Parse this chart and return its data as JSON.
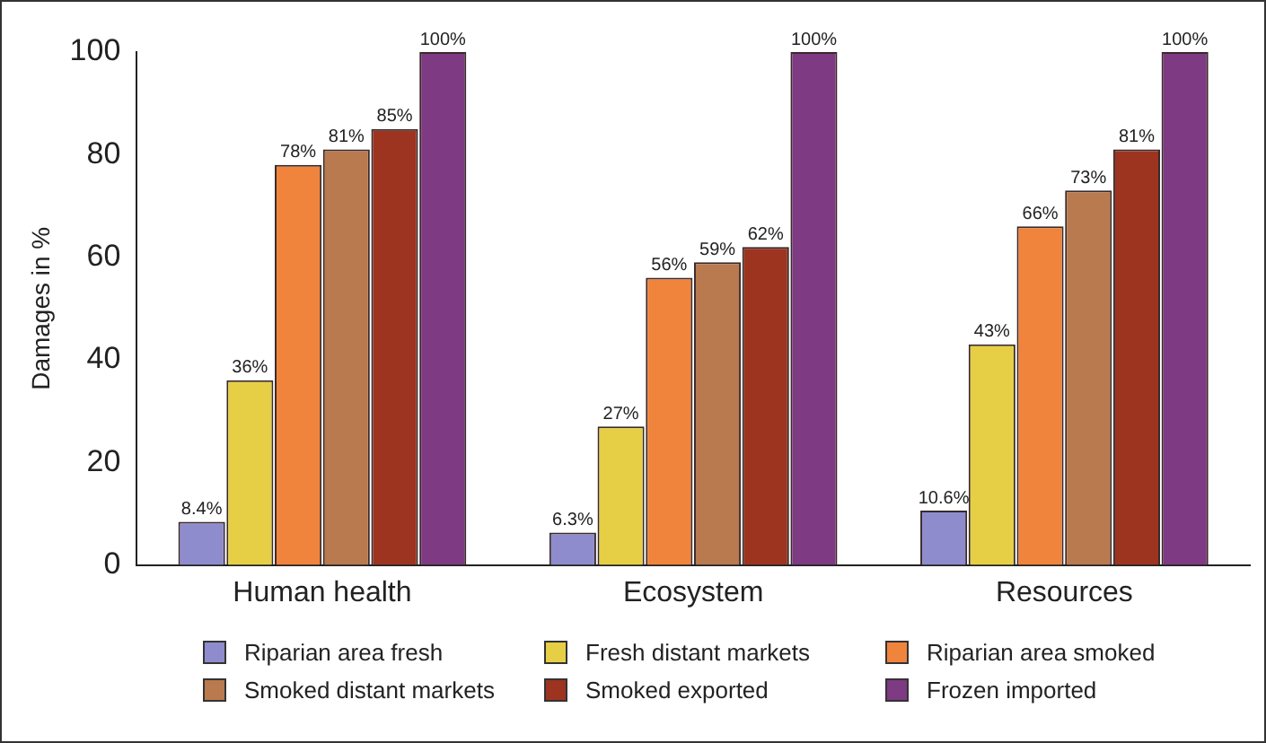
{
  "chart_data": {
    "type": "bar",
    "ylabel": "Damages in %",
    "categories": [
      "Human health",
      "Ecosystem",
      "Resources"
    ],
    "series": [
      {
        "name": "Riparian area fresh",
        "color": "#8e8ccc",
        "values": [
          8.4,
          6.3,
          10.6
        ],
        "value_labels": [
          "8.4%",
          "6.3%",
          "10.6%"
        ]
      },
      {
        "name": "Fresh distant markets",
        "color": "#e6cf45",
        "values": [
          36,
          27,
          43
        ],
        "value_labels": [
          "36%",
          "27%",
          "43%"
        ]
      },
      {
        "name": "Riparian area smoked",
        "color": "#f0843c",
        "values": [
          78,
          56,
          66
        ],
        "value_labels": [
          "78%",
          "56%",
          "66%"
        ]
      },
      {
        "name": "Smoked distant markets",
        "color": "#b87a4e",
        "values": [
          81,
          59,
          73
        ],
        "value_labels": [
          "81%",
          "59%",
          "73%"
        ]
      },
      {
        "name": "Smoked exported",
        "color": "#9c3420",
        "values": [
          85,
          62,
          81
        ],
        "value_labels": [
          "85%",
          "62%",
          "81%"
        ]
      },
      {
        "name": "Frozen imported",
        "color": "#7e3a82",
        "values": [
          100,
          100,
          100
        ],
        "value_labels": [
          "100%",
          "100%",
          "100%"
        ]
      }
    ],
    "ylim": [
      0,
      100
    ],
    "yticks": [
      0,
      20,
      40,
      60,
      80,
      100
    ],
    "grid": false,
    "legend": "bottom"
  }
}
